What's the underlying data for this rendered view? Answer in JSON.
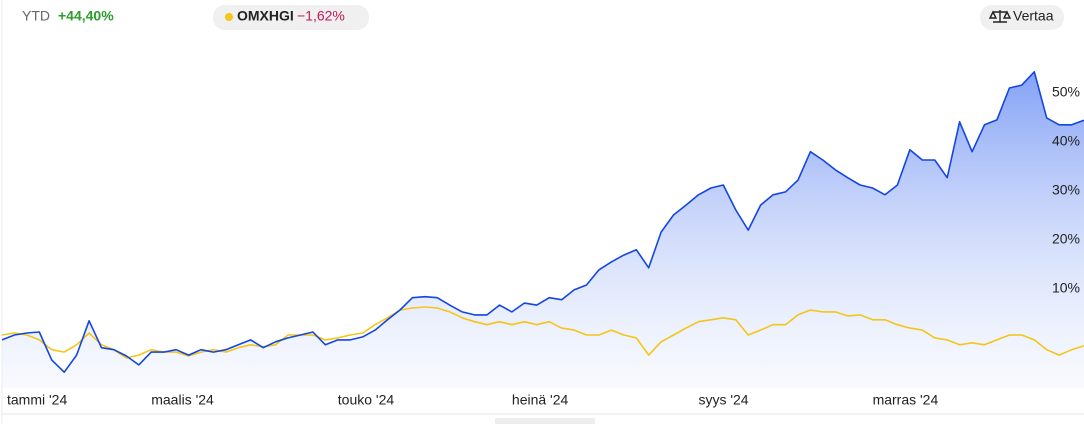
{
  "header": {
    "period": "YTD",
    "change": "+44,40%",
    "benchmark_change": "−1,62%",
    "compare_button": "Vertaa"
  },
  "chart_data": {
    "type": "line",
    "categories": [
      "tammi '24",
      null,
      null,
      null,
      null,
      null,
      null,
      null,
      null,
      null,
      null,
      null,
      "maalis '24",
      null,
      null,
      null,
      null,
      null,
      null,
      null,
      null,
      null,
      null,
      null,
      null,
      null,
      null,
      "touko '24",
      null,
      null,
      null,
      null,
      null,
      null,
      null,
      null,
      null,
      null,
      null,
      null,
      null,
      "heinä '24",
      null,
      null,
      null,
      null,
      null,
      null,
      null,
      null,
      null,
      null,
      null,
      null,
      null,
      null,
      "syys '24",
      null,
      null,
      null,
      null,
      null,
      null,
      null,
      null,
      null,
      null,
      null,
      null,
      null,
      "marras '24",
      null,
      null,
      null,
      null,
      null,
      null,
      null,
      null,
      null,
      null,
      null,
      null,
      null,
      null,
      null,
      null,
      null
    ],
    "series": [
      {
        "color": "#1446e0",
        "area": true,
        "values": [
          -0.4,
          0.6,
          1,
          1.2,
          -4.5,
          -7,
          -3.5,
          3.5,
          -2,
          -2.4,
          -3.7,
          -5.5,
          -2.9,
          -2.9,
          -2.4,
          -3.5,
          -2.4,
          -2.9,
          -2.4,
          -1.4,
          -0.4,
          -2,
          -0.8,
          0,
          0.6,
          1.2,
          -1.4,
          -0.4,
          -0.4,
          0.2,
          1.6,
          3.7,
          5.7,
          8.2,
          8.4,
          8.2,
          6.7,
          5.3,
          4.7,
          4.7,
          6.7,
          5.3,
          7.1,
          6.7,
          8.2,
          7.8,
          9.8,
          10.8,
          13.9,
          15.5,
          16.9,
          18,
          14.3,
          21.6,
          25.1,
          27.1,
          29.2,
          30.6,
          31.2,
          26.1,
          22,
          27.1,
          29.2,
          29.8,
          32.2,
          38,
          36.3,
          34.3,
          32.7,
          31.2,
          30.6,
          29.2,
          31.2,
          38.4,
          36.3,
          36.3,
          32.7,
          44.1,
          38,
          43.5,
          44.5,
          51,
          51.6,
          54.3,
          44.9,
          43.5,
          43.5,
          44.4
        ]
      },
      {
        "name": "OMXHGI",
        "color": "#f5c518",
        "values": [
          0.6,
          1,
          0.6,
          -0.4,
          -2.4,
          -2.9,
          -1.4,
          1,
          -1.4,
          -2.4,
          -4.1,
          -3.5,
          -2.4,
          -2.9,
          -2.9,
          -3.7,
          -2.9,
          -2.4,
          -2.9,
          -2,
          -1.4,
          -1.8,
          -1.4,
          0.6,
          0.6,
          0.6,
          -0.4,
          0,
          0.6,
          1,
          2.7,
          4.1,
          5.7,
          6.1,
          6.3,
          6.1,
          5.3,
          4.1,
          3.3,
          2.7,
          3.3,
          2.7,
          3.3,
          2.7,
          3.3,
          2,
          1.6,
          0.6,
          0.6,
          1.6,
          0.6,
          0,
          -3.5,
          -0.8,
          0.6,
          2,
          3.3,
          3.7,
          4.1,
          3.7,
          0.6,
          1.6,
          2.7,
          2.7,
          4.7,
          5.7,
          5.3,
          5.3,
          4.5,
          4.7,
          3.7,
          3.7,
          2.7,
          2,
          1.6,
          0,
          -0.4,
          -1.4,
          -1,
          -1.4,
          -0.4,
          0.6,
          0.6,
          -0.4,
          -2.4,
          -3.5,
          -2.4,
          -1.6
        ]
      }
    ],
    "ylim": [
      -9,
      61
    ],
    "yticks": [
      {
        "value": 10,
        "label": "10%"
      },
      {
        "value": 20,
        "label": "20%"
      },
      {
        "value": 30,
        "label": "30%"
      },
      {
        "value": 40,
        "label": "40%"
      },
      {
        "value": 50,
        "label": "50%"
      }
    ],
    "grid": false
  }
}
